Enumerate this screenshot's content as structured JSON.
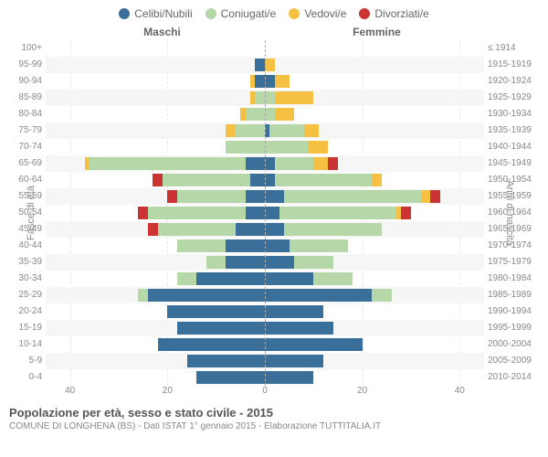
{
  "legend": [
    {
      "label": "Celibi/Nubili",
      "color": "#3a6f9a"
    },
    {
      "label": "Coniugati/e",
      "color": "#b6d7a8"
    },
    {
      "label": "Vedovi/e",
      "color": "#f6c143"
    },
    {
      "label": "Divorziati/e",
      "color": "#cc3333"
    }
  ],
  "top_labels": {
    "left": "Maschi",
    "right": "Femmine"
  },
  "yaxis_left_title": "Fasce di età",
  "yaxis_right_title": "Anni di nascita",
  "xaxis_max": 45,
  "xaxis_ticks": [
    40,
    20,
    0,
    20,
    40
  ],
  "grid_positions_pct": [
    5.56,
    27.78,
    50,
    72.22,
    94.44
  ],
  "footer_title": "Popolazione per età, sesso e stato civile - 2015",
  "footer_sub": "COMUNE DI LONGHENA (BS) - Dati ISTAT 1° gennaio 2015 - Elaborazione TUTTITALIA.IT",
  "row_bg_odd": "#f6f6f6",
  "colors": {
    "celibi": "#3a6f9a",
    "coniugati": "#b6d7a8",
    "vedovi": "#f6c143",
    "divorziati": "#cc3333"
  },
  "rows": [
    {
      "age": "100+",
      "birth": "≤ 1914",
      "m": [
        0,
        0,
        0,
        0
      ],
      "f": [
        0,
        0,
        0,
        0
      ]
    },
    {
      "age": "95-99",
      "birth": "1915-1919",
      "m": [
        2,
        0,
        0,
        0
      ],
      "f": [
        0,
        0,
        2,
        0
      ]
    },
    {
      "age": "90-94",
      "birth": "1920-1924",
      "m": [
        2,
        0,
        1,
        0
      ],
      "f": [
        2,
        0,
        3,
        0
      ]
    },
    {
      "age": "85-89",
      "birth": "1925-1929",
      "m": [
        0,
        2,
        1,
        0
      ],
      "f": [
        0,
        2,
        8,
        0
      ]
    },
    {
      "age": "80-84",
      "birth": "1930-1934",
      "m": [
        0,
        4,
        1,
        0
      ],
      "f": [
        0,
        2,
        4,
        0
      ]
    },
    {
      "age": "75-79",
      "birth": "1935-1939",
      "m": [
        0,
        6,
        2,
        0
      ],
      "f": [
        1,
        7,
        3,
        0
      ]
    },
    {
      "age": "70-74",
      "birth": "1940-1944",
      "m": [
        0,
        8,
        0,
        0
      ],
      "f": [
        0,
        9,
        4,
        0
      ]
    },
    {
      "age": "65-69",
      "birth": "1945-1949",
      "m": [
        4,
        32,
        1,
        0
      ],
      "f": [
        2,
        8,
        3,
        2
      ]
    },
    {
      "age": "60-64",
      "birth": "1950-1954",
      "m": [
        3,
        18,
        0,
        2
      ],
      "f": [
        2,
        20,
        2,
        0
      ]
    },
    {
      "age": "55-59",
      "birth": "1955-1959",
      "m": [
        4,
        14,
        0,
        2
      ],
      "f": [
        4,
        28,
        2,
        2
      ]
    },
    {
      "age": "50-54",
      "birth": "1960-1964",
      "m": [
        4,
        20,
        0,
        2
      ],
      "f": [
        3,
        24,
        1,
        2
      ]
    },
    {
      "age": "45-49",
      "birth": "1965-1969",
      "m": [
        6,
        16,
        0,
        2
      ],
      "f": [
        4,
        20,
        0,
        0
      ]
    },
    {
      "age": "40-44",
      "birth": "1970-1974",
      "m": [
        8,
        10,
        0,
        0
      ],
      "f": [
        5,
        12,
        0,
        0
      ]
    },
    {
      "age": "35-39",
      "birth": "1975-1979",
      "m": [
        8,
        4,
        0,
        0
      ],
      "f": [
        6,
        8,
        0,
        0
      ]
    },
    {
      "age": "30-34",
      "birth": "1980-1984",
      "m": [
        14,
        4,
        0,
        0
      ],
      "f": [
        10,
        8,
        0,
        0
      ]
    },
    {
      "age": "25-29",
      "birth": "1985-1989",
      "m": [
        24,
        2,
        0,
        0
      ],
      "f": [
        22,
        4,
        0,
        0
      ]
    },
    {
      "age": "20-24",
      "birth": "1990-1994",
      "m": [
        20,
        0,
        0,
        0
      ],
      "f": [
        12,
        0,
        0,
        0
      ]
    },
    {
      "age": "15-19",
      "birth": "1995-1999",
      "m": [
        18,
        0,
        0,
        0
      ],
      "f": [
        14,
        0,
        0,
        0
      ]
    },
    {
      "age": "10-14",
      "birth": "2000-2004",
      "m": [
        22,
        0,
        0,
        0
      ],
      "f": [
        20,
        0,
        0,
        0
      ]
    },
    {
      "age": "5-9",
      "birth": "2005-2009",
      "m": [
        16,
        0,
        0,
        0
      ],
      "f": [
        12,
        0,
        0,
        0
      ]
    },
    {
      "age": "0-4",
      "birth": "2010-2014",
      "m": [
        14,
        0,
        0,
        0
      ],
      "f": [
        10,
        0,
        0,
        0
      ]
    }
  ]
}
